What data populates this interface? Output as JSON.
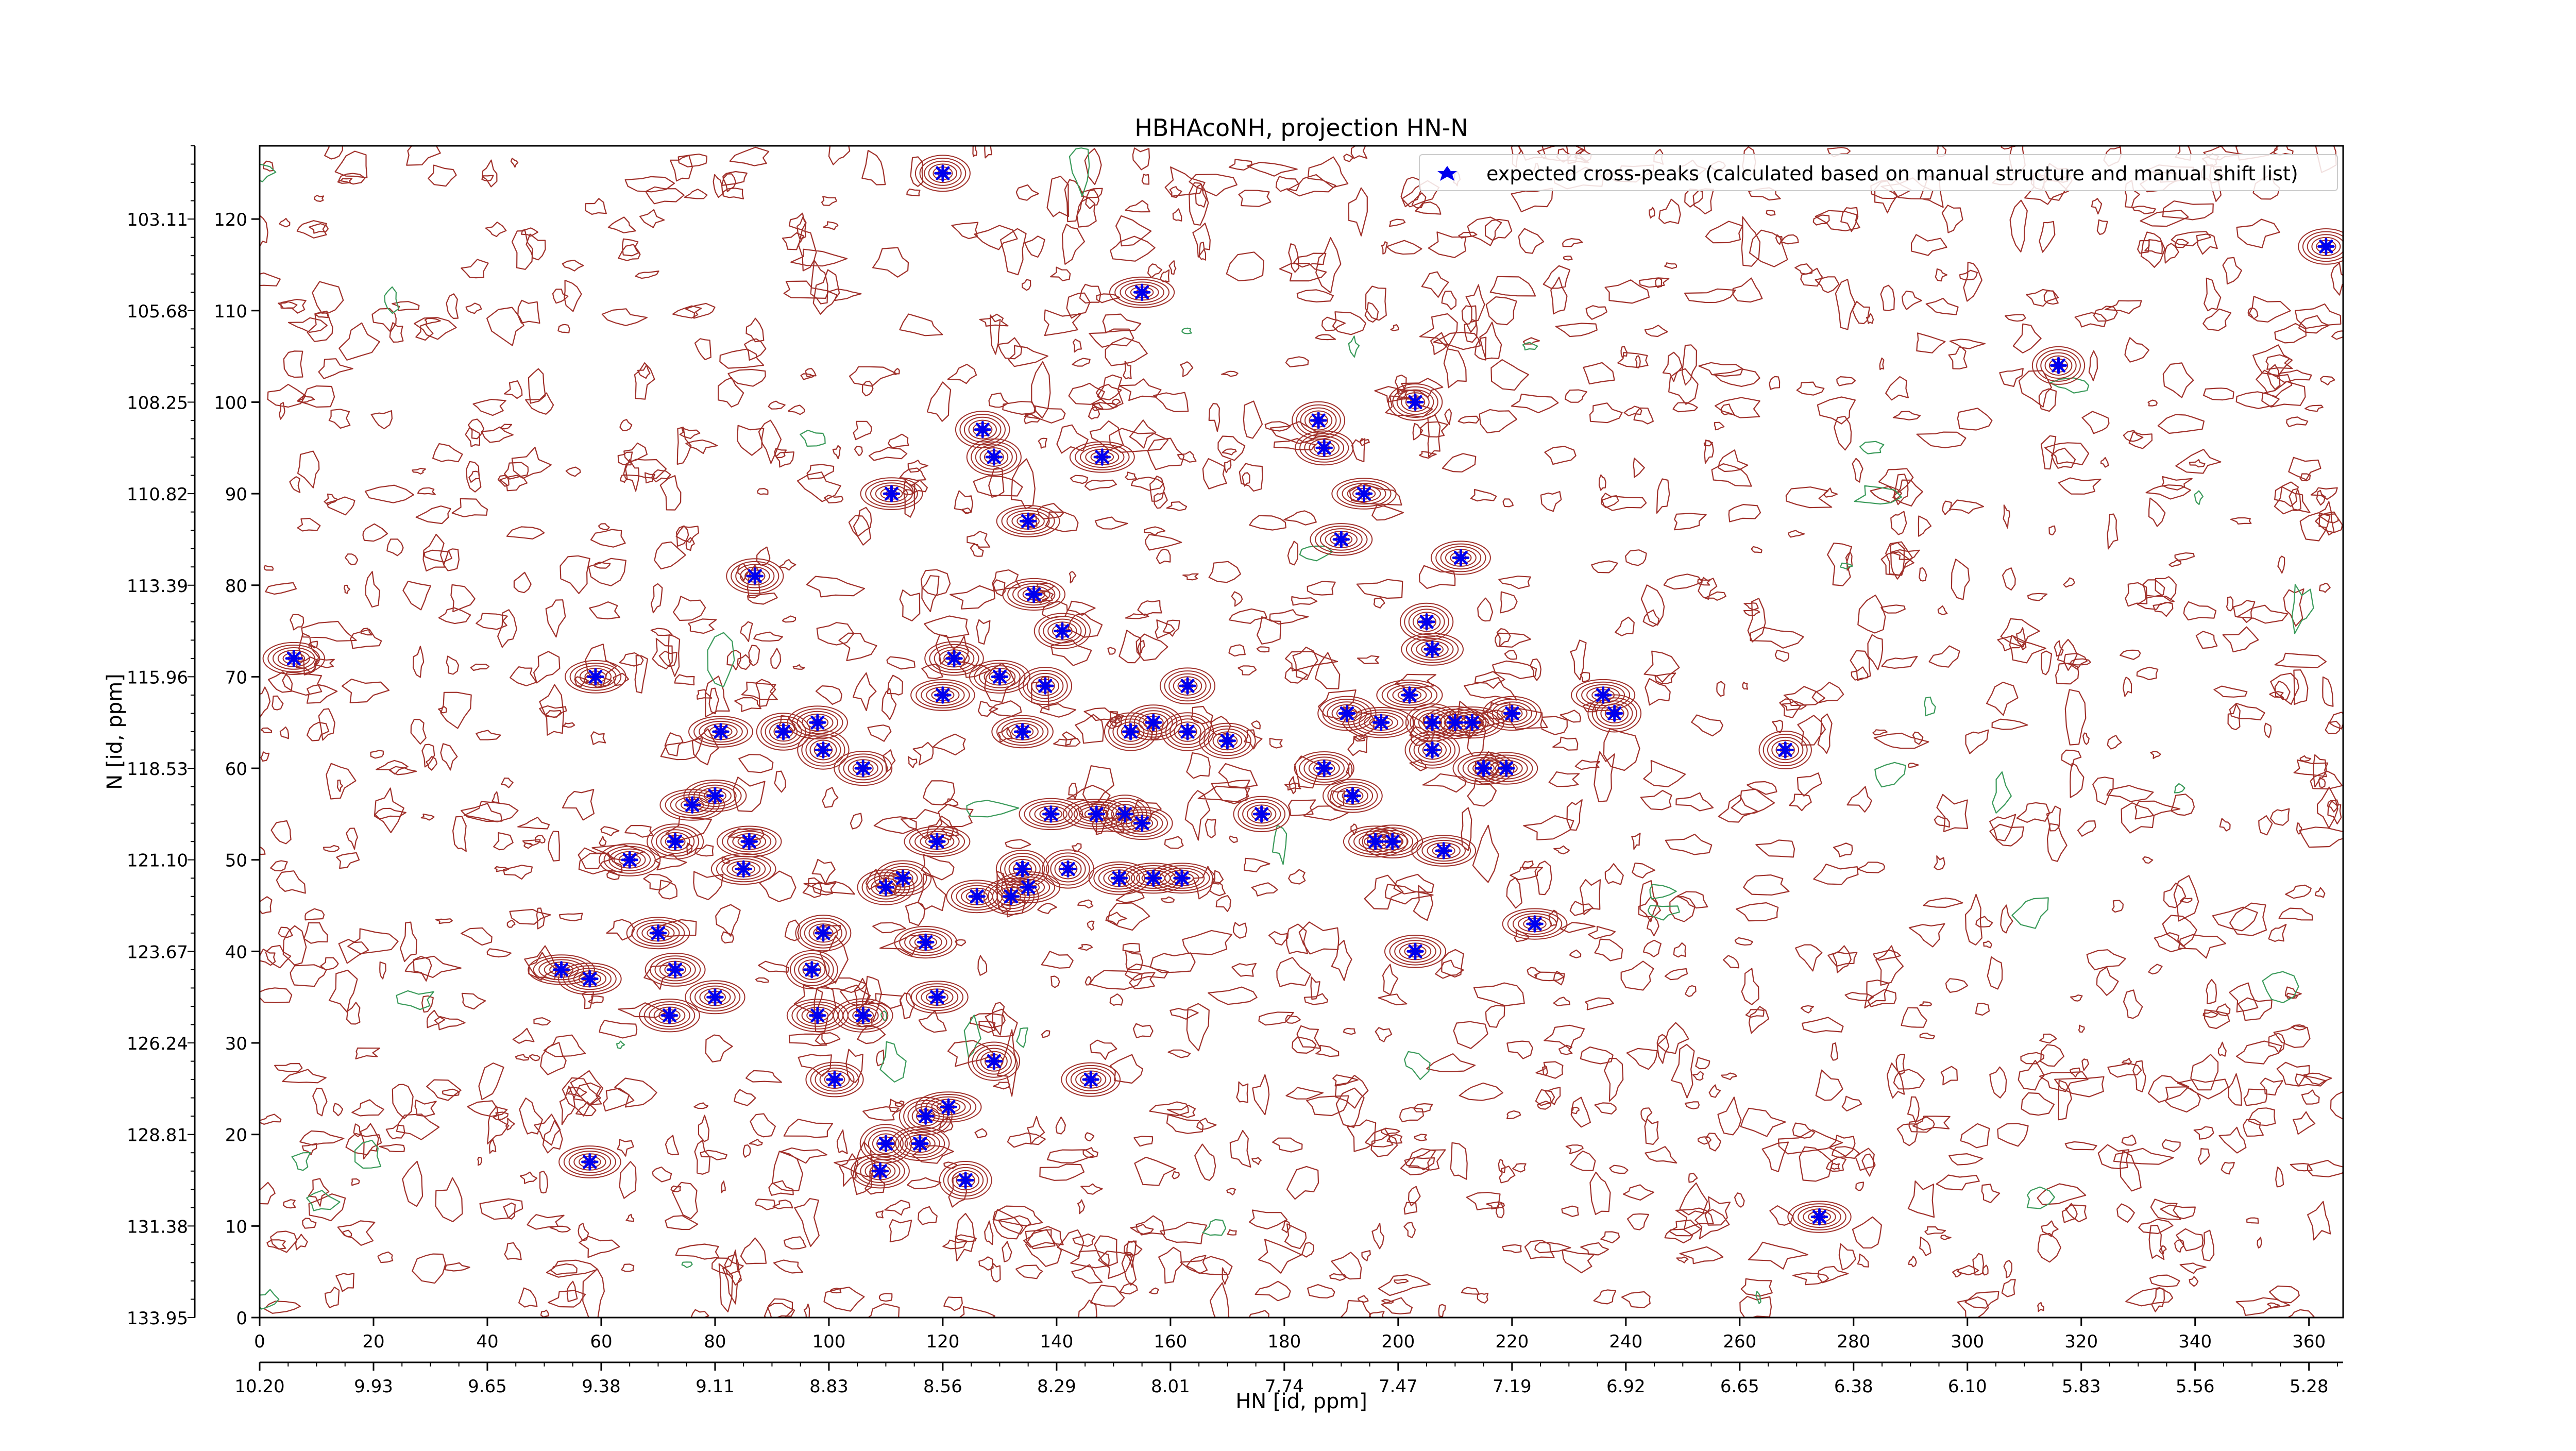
{
  "chart_data": {
    "type": "scatter",
    "title": "HBHAcoNH, projection HN-N",
    "xlabel": "HN [id, ppm]",
    "ylabel": "N [id, ppm]",
    "x_index_range": [
      0,
      366
    ],
    "y_index_range": [
      0,
      128
    ],
    "x_index_ticks": [
      "0",
      "20",
      "40",
      "60",
      "80",
      "100",
      "120",
      "140",
      "160",
      "180",
      "200",
      "220",
      "240",
      "260",
      "280",
      "300",
      "320",
      "340",
      "360"
    ],
    "x_ppm_ticks": [
      "10.20",
      "9.93",
      "9.65",
      "9.38",
      "9.11",
      "8.83",
      "8.56",
      "8.29",
      "8.01",
      "7.74",
      "7.47",
      "7.19",
      "6.92",
      "6.65",
      "6.38",
      "6.10",
      "5.83",
      "5.56",
      "5.28"
    ],
    "y_index_ticks": [
      "0",
      "10",
      "20",
      "30",
      "40",
      "50",
      "60",
      "70",
      "80",
      "90",
      "100",
      "110",
      "120"
    ],
    "y_ppm_ticks": [
      "133.95",
      "131.38",
      "128.81",
      "126.24",
      "123.67",
      "121.10",
      "118.53",
      "115.96",
      "113.39",
      "110.82",
      "108.25",
      "105.68",
      "103.11"
    ],
    "legend": {
      "location": "top-right",
      "entries": [
        "expected cross-peaks (calculated based on manual structure and manual shift list)"
      ]
    },
    "colors": {
      "positive_contours": "#a0302a",
      "negative_contours": "#3a9a5a",
      "markers": "#0000ee"
    },
    "series": [
      {
        "name": "expected cross-peaks (calculated based on manual structure and manual shift list)",
        "points": [
          [
            6,
            72
          ],
          [
            59,
            70
          ],
          [
            87,
            81
          ],
          [
            65,
            50
          ],
          [
            70,
            42
          ],
          [
            53,
            38
          ],
          [
            58,
            37
          ],
          [
            73,
            38
          ],
          [
            72,
            33
          ],
          [
            80,
            35
          ],
          [
            58,
            17
          ],
          [
            73,
            52
          ],
          [
            76,
            56
          ],
          [
            80,
            57
          ],
          [
            81,
            64
          ],
          [
            85,
            49
          ],
          [
            86,
            52
          ],
          [
            92,
            64
          ],
          [
            98,
            65
          ],
          [
            99,
            62
          ],
          [
            106,
            60
          ],
          [
            97,
            38
          ],
          [
            99,
            42
          ],
          [
            98,
            33
          ],
          [
            101,
            26
          ],
          [
            106,
            33
          ],
          [
            110,
            19
          ],
          [
            109,
            16
          ],
          [
            113,
            48
          ],
          [
            110,
            47
          ],
          [
            117,
            41
          ],
          [
            119,
            52
          ],
          [
            119,
            35
          ],
          [
            117,
            22
          ],
          [
            121,
            23
          ],
          [
            116,
            19
          ],
          [
            124,
            15
          ],
          [
            120,
            68
          ],
          [
            122,
            72
          ],
          [
            130,
            70
          ],
          [
            138,
            69
          ],
          [
            139,
            55
          ],
          [
            134,
            64
          ],
          [
            126,
            46
          ],
          [
            134,
            49
          ],
          [
            132,
            46
          ],
          [
            135,
            47
          ],
          [
            142,
            49
          ],
          [
            147,
            55
          ],
          [
            152,
            55
          ],
          [
            151,
            48
          ],
          [
            157,
            48
          ],
          [
            162,
            48
          ],
          [
            155,
            54
          ],
          [
            129,
            28
          ],
          [
            146,
            26
          ],
          [
            153,
            64
          ],
          [
            157,
            65
          ],
          [
            163,
            64
          ],
          [
            163,
            69
          ],
          [
            170,
            63
          ],
          [
            176,
            55
          ],
          [
            127,
            97
          ],
          [
            129,
            94
          ],
          [
            135,
            87
          ],
          [
            136,
            79
          ],
          [
            141,
            75
          ],
          [
            148,
            94
          ],
          [
            155,
            112
          ],
          [
            111,
            90
          ],
          [
            120,
            125
          ],
          [
            186,
            98
          ],
          [
            187,
            95
          ],
          [
            194,
            90
          ],
          [
            190,
            85
          ],
          [
            203,
            100
          ],
          [
            211,
            83
          ],
          [
            191,
            66
          ],
          [
            197,
            65
          ],
          [
            202,
            68
          ],
          [
            206,
            65
          ],
          [
            206,
            62
          ],
          [
            210,
            65
          ],
          [
            205,
            76
          ],
          [
            206,
            73
          ],
          [
            187,
            60
          ],
          [
            192,
            57
          ],
          [
            196,
            52
          ],
          [
            199,
            52
          ],
          [
            203,
            40
          ],
          [
            208,
            51
          ],
          [
            213,
            65
          ],
          [
            215,
            60
          ],
          [
            219,
            60
          ],
          [
            220,
            66
          ],
          [
            224,
            43
          ],
          [
            236,
            68
          ],
          [
            238,
            66
          ],
          [
            268,
            62
          ],
          [
            274,
            11
          ],
          [
            316,
            104
          ],
          [
            363,
            117
          ]
        ]
      }
    ]
  }
}
